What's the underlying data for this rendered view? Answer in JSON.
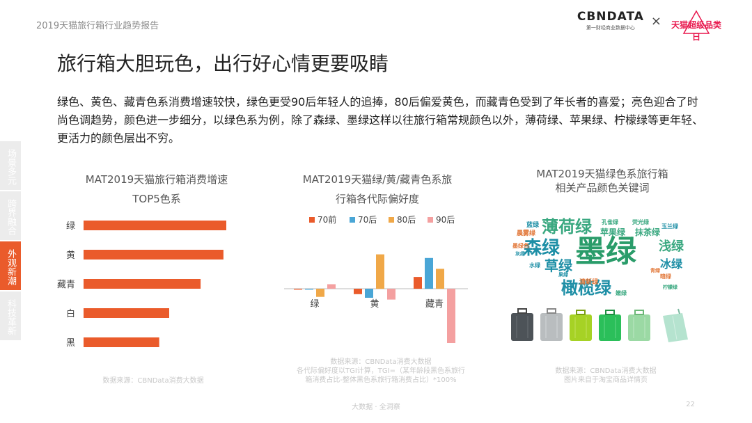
{
  "header": {
    "report_title": "2019天猫旅行箱行业趋势报告",
    "brand_logo": "CBNDATA",
    "brand_sub": "第一财经商业数据中心",
    "times": "×",
    "partner": "天猫超级品类日"
  },
  "page_title": "旅行箱大胆玩色，出行好心情更要吸睛",
  "intro": "绿色、黄色、藏青色系消费增速较快，绿色更受90后年轻人的追捧，80后偏爱黄色，而藏青色受到了年长者的喜爱；亮色迎合了时尚色调趋势，颜色进一步细分，以绿色系为例，除了森绿、墨绿这样以往旅行箱常规颜色以外，薄荷绿、苹果绿、柠檬绿等更年轻、更活力的颜色层出不穷。",
  "side_nav": [
    {
      "label": "场景多元",
      "active": false
    },
    {
      "label": "跨界融合",
      "active": false
    },
    {
      "label": "外观新潮",
      "active": true
    },
    {
      "label": "科技革新",
      "active": false
    }
  ],
  "chart1": {
    "title_line1": "MAT2019天猫旅行箱消费增速",
    "title_line2": "TOP5色系",
    "source": "数据来源：CBNData消费大数据"
  },
  "chart2": {
    "title_line1": "MAT2019天猫绿/黄/藏青色系旅",
    "title_line2": "行箱各代际偏好度",
    "source_line1": "数据来源：CBNData消费大数据",
    "source_line2": "各代际偏好度以TGI计算，TGI=（某年龄段黑色系旅行",
    "source_line3": "箱消费占比-整体黑色系旅行箱消费占比）*100%"
  },
  "chart3": {
    "title_line1": "MAT2019天猫绿色系旅行箱",
    "title_line2": "相关产品颜色关键词",
    "source_line1": "数据来源：CBNData消费大数据",
    "source_line2": "图片来自于淘宝商品详情页",
    "words": [
      {
        "text": "墨绿",
        "color": "#2a9c6a"
      },
      {
        "text": "薄荷绿",
        "color": "#3aa880"
      },
      {
        "text": "森绿",
        "color": "#1e8fa6"
      },
      {
        "text": "橄榄绿",
        "color": "#1e8fa6"
      },
      {
        "text": "草绿",
        "color": "#1e8fa6"
      },
      {
        "text": "浅绿",
        "color": "#3aa880"
      },
      {
        "text": "冰绿",
        "color": "#1e8fa6"
      },
      {
        "text": "苹果绿",
        "color": "#3aa880"
      },
      {
        "text": "抹茶绿",
        "color": "#3aa880"
      },
      {
        "text": "孔雀绿",
        "color": "#3aa880"
      },
      {
        "text": "蓝绿",
        "color": "#1e8fa6"
      },
      {
        "text": "晨雾绿",
        "color": "#e2783a"
      },
      {
        "text": "荧光绿",
        "color": "#3aa880"
      },
      {
        "text": "墨绿色",
        "color": "#e2783a"
      },
      {
        "text": "水绿",
        "color": "#1e8fa6"
      },
      {
        "text": "暗绿",
        "color": "#e2783a"
      },
      {
        "text": "清新绿",
        "color": "#e2783a"
      },
      {
        "text": "玉兰绿",
        "color": "#1e8fa6"
      },
      {
        "text": "柠檬绿",
        "color": "#3aa880"
      },
      {
        "text": "果绿",
        "color": "#1e8fa6"
      },
      {
        "text": "嫩绿",
        "color": "#3aa880"
      },
      {
        "text": "青绿",
        "color": "#e2783a"
      },
      {
        "text": "灰绿",
        "color": "#1e8fa6"
      }
    ]
  },
  "footer": {
    "center": "大数据 · 全洞察",
    "page": "22"
  },
  "chart_data": [
    {
      "type": "bar",
      "orientation": "horizontal",
      "title": "MAT2019天猫旅行箱消费增速 TOP5色系",
      "categories": [
        "绿",
        "黄",
        "藏青",
        "白",
        "黑"
      ],
      "values": [
        100,
        98,
        82,
        60,
        53
      ],
      "value_scale": "relative (no axis printed)",
      "color": "#ea5b2b",
      "grid": false
    },
    {
      "type": "bar",
      "title": "MAT2019天猫绿/黄/藏青色系旅行箱各代际偏好度",
      "categories": [
        "绿",
        "黄",
        "藏青"
      ],
      "series": [
        {
          "name": "70前",
          "color": "#ea5b2b",
          "values": [
            -1,
            -6,
            13
          ]
        },
        {
          "name": "70后",
          "color": "#4aa6d6",
          "values": [
            -1,
            -10,
            34
          ]
        },
        {
          "name": "80后",
          "color": "#f0a848",
          "values": [
            -9,
            38,
            22
          ]
        },
        {
          "name": "90后",
          "color": "#f4a0a0",
          "values": [
            5,
            -12,
            -60
          ]
        }
      ],
      "value_scale": "relative (no axis printed)",
      "legend": "top",
      "grid": false
    }
  ]
}
